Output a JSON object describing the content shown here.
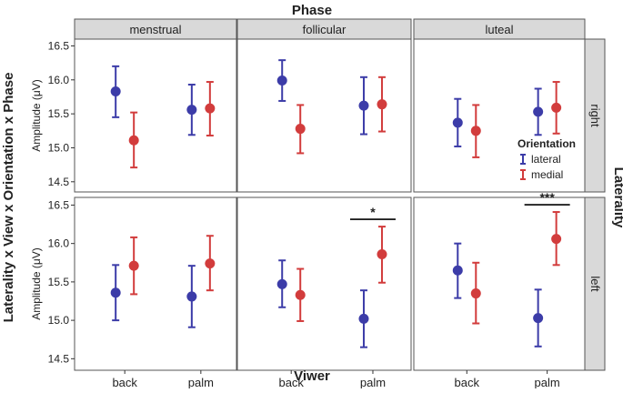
{
  "chart_data": {
    "type": "scatter",
    "title": "Phase",
    "row_facet_title": "Laterality",
    "left_title": "Laterality x View x Orientation x Phase",
    "xlabel": "Viwer",
    "ylabel": "Amplitude (μV)",
    "ylim": [
      14.35,
      16.6
    ],
    "yticks": [
      "14.5",
      "15.0",
      "15.5",
      "16.0",
      "16.5"
    ],
    "categories": [
      "back",
      "palm"
    ],
    "columns": [
      "menstrual",
      "follicular",
      "luteal"
    ],
    "rows": [
      "right",
      "left"
    ],
    "legend": {
      "title": "Orientation",
      "items": [
        {
          "name": "lateral",
          "color": "#3c3ca8"
        },
        {
          "name": "medial",
          "color": "#d23c3c"
        }
      ]
    },
    "panels": [
      {
        "column": "menstrual",
        "row": "right",
        "series": [
          {
            "name": "lateral",
            "points": [
              {
                "x": "back",
                "y": 15.83,
                "lo": 15.45,
                "hi": 16.2
              },
              {
                "x": "palm",
                "y": 15.56,
                "lo": 15.19,
                "hi": 15.93
              }
            ]
          },
          {
            "name": "medial",
            "points": [
              {
                "x": "back",
                "y": 15.11,
                "lo": 14.71,
                "hi": 15.52
              },
              {
                "x": "palm",
                "y": 15.58,
                "lo": 15.18,
                "hi": 15.97
              }
            ]
          }
        ]
      },
      {
        "column": "follicular",
        "row": "right",
        "series": [
          {
            "name": "lateral",
            "points": [
              {
                "x": "back",
                "y": 15.99,
                "lo": 15.69,
                "hi": 16.29
              },
              {
                "x": "palm",
                "y": 15.62,
                "lo": 15.2,
                "hi": 16.04
              }
            ]
          },
          {
            "name": "medial",
            "points": [
              {
                "x": "back",
                "y": 15.28,
                "lo": 14.92,
                "hi": 15.63
              },
              {
                "x": "palm",
                "y": 15.64,
                "lo": 15.24,
                "hi": 16.04
              }
            ]
          }
        ]
      },
      {
        "column": "luteal",
        "row": "right",
        "series": [
          {
            "name": "lateral",
            "points": [
              {
                "x": "back",
                "y": 15.37,
                "lo": 15.02,
                "hi": 15.72
              },
              {
                "x": "palm",
                "y": 15.53,
                "lo": 15.19,
                "hi": 15.87
              }
            ]
          },
          {
            "name": "medial",
            "points": [
              {
                "x": "back",
                "y": 15.25,
                "lo": 14.86,
                "hi": 15.63
              },
              {
                "x": "palm",
                "y": 15.59,
                "lo": 15.21,
                "hi": 15.97
              }
            ]
          }
        ]
      },
      {
        "column": "menstrual",
        "row": "left",
        "series": [
          {
            "name": "lateral",
            "points": [
              {
                "x": "back",
                "y": 15.36,
                "lo": 15.0,
                "hi": 15.72
              },
              {
                "x": "palm",
                "y": 15.31,
                "lo": 14.91,
                "hi": 15.71
              }
            ]
          },
          {
            "name": "medial",
            "points": [
              {
                "x": "back",
                "y": 15.71,
                "lo": 15.34,
                "hi": 16.08
              },
              {
                "x": "palm",
                "y": 15.74,
                "lo": 15.39,
                "hi": 16.1
              }
            ]
          }
        ]
      },
      {
        "column": "follicular",
        "row": "left",
        "annotation": {
          "text": "*"
        },
        "series": [
          {
            "name": "lateral",
            "points": [
              {
                "x": "back",
                "y": 15.47,
                "lo": 15.17,
                "hi": 15.78
              },
              {
                "x": "palm",
                "y": 15.02,
                "lo": 14.65,
                "hi": 15.39
              }
            ]
          },
          {
            "name": "medial",
            "points": [
              {
                "x": "back",
                "y": 15.33,
                "lo": 14.99,
                "hi": 15.67
              },
              {
                "x": "palm",
                "y": 15.86,
                "lo": 15.49,
                "hi": 16.22
              }
            ]
          }
        ]
      },
      {
        "column": "luteal",
        "row": "left",
        "annotation": {
          "text": "***"
        },
        "series": [
          {
            "name": "lateral",
            "points": [
              {
                "x": "back",
                "y": 15.65,
                "lo": 15.29,
                "hi": 16.0
              },
              {
                "x": "palm",
                "y": 15.03,
                "lo": 14.66,
                "hi": 15.4
              }
            ]
          },
          {
            "name": "medial",
            "points": [
              {
                "x": "back",
                "y": 15.35,
                "lo": 14.96,
                "hi": 15.75
              },
              {
                "x": "palm",
                "y": 16.06,
                "lo": 15.72,
                "hi": 16.41
              }
            ]
          }
        ]
      }
    ]
  }
}
